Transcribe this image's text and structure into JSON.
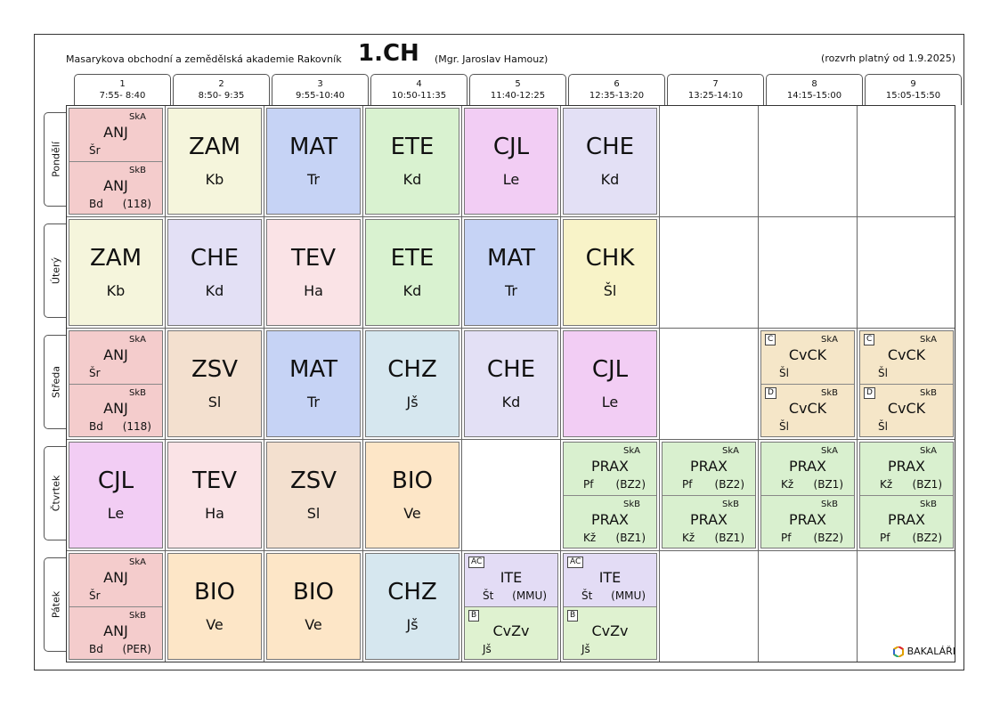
{
  "header": {
    "school": "Masarykova obchodní a zemědělská akademie Rakovník",
    "class_name": "1.CH",
    "teacher": "(Mgr. Jaroslav Hamouz)",
    "validity": "(rozvrh platný od 1.9.2025)"
  },
  "periods": [
    {
      "num": "1",
      "time": "7:55- 8:40"
    },
    {
      "num": "2",
      "time": "8:50- 9:35"
    },
    {
      "num": "3",
      "time": "9:55-10:40"
    },
    {
      "num": "4",
      "time": "10:50-11:35"
    },
    {
      "num": "5",
      "time": "11:40-12:25"
    },
    {
      "num": "6",
      "time": "12:35-13:20"
    },
    {
      "num": "7",
      "time": "13:25-14:10"
    },
    {
      "num": "8",
      "time": "14:15-15:00"
    },
    {
      "num": "9",
      "time": "15:05-15:50"
    }
  ],
  "days": [
    "Pondělí",
    "Úterý",
    "Středa",
    "Čtvrtek",
    "Pátek"
  ],
  "colors": {
    "ANJ": "#f4cccc",
    "ZAM": "#f5f5dc",
    "MAT": "#c6d3f5",
    "ETE": "#d9f2d0",
    "CJL": "#f2cdf4",
    "CHE": "#e3e0f5",
    "TEV": "#fae3e6",
    "CHK": "#f8f3c8",
    "ZSV": "#f3e0cf",
    "CHZ": "#d6e7ef",
    "BIO": "#fde6c7",
    "CvCK": "#f5e6c8",
    "PRAX": "#d9f0cf",
    "ITE": "#e3dcf5",
    "CvZv": "#dff2d0"
  },
  "lessons": [
    {
      "day": 0,
      "period": 0,
      "split": true,
      "top": {
        "group": "SkA",
        "subject": "ANJ",
        "teacher": "Šr",
        "room": ""
      },
      "bottom": {
        "group": "SkB",
        "subject": "ANJ",
        "teacher": "Bd",
        "room": "(118)"
      }
    },
    {
      "day": 0,
      "period": 1,
      "subject": "ZAM",
      "teacher": "Kb"
    },
    {
      "day": 0,
      "period": 2,
      "subject": "MAT",
      "teacher": "Tr"
    },
    {
      "day": 0,
      "period": 3,
      "subject": "ETE",
      "teacher": "Kd"
    },
    {
      "day": 0,
      "period": 4,
      "subject": "CJL",
      "teacher": "Le"
    },
    {
      "day": 0,
      "period": 5,
      "subject": "CHE",
      "teacher": "Kd"
    },
    {
      "day": 1,
      "period": 0,
      "subject": "ZAM",
      "teacher": "Kb"
    },
    {
      "day": 1,
      "period": 1,
      "subject": "CHE",
      "teacher": "Kd"
    },
    {
      "day": 1,
      "period": 2,
      "subject": "TEV",
      "teacher": "Ha"
    },
    {
      "day": 1,
      "period": 3,
      "subject": "ETE",
      "teacher": "Kd"
    },
    {
      "day": 1,
      "period": 4,
      "subject": "MAT",
      "teacher": "Tr"
    },
    {
      "day": 1,
      "period": 5,
      "subject": "CHK",
      "teacher": "Šl"
    },
    {
      "day": 2,
      "period": 0,
      "split": true,
      "top": {
        "group": "SkA",
        "subject": "ANJ",
        "teacher": "Šr",
        "room": ""
      },
      "bottom": {
        "group": "SkB",
        "subject": "ANJ",
        "teacher": "Bd",
        "room": "(118)"
      }
    },
    {
      "day": 2,
      "period": 1,
      "subject": "ZSV",
      "teacher": "Sl"
    },
    {
      "day": 2,
      "period": 2,
      "subject": "MAT",
      "teacher": "Tr"
    },
    {
      "day": 2,
      "period": 3,
      "subject": "CHZ",
      "teacher": "Jš"
    },
    {
      "day": 2,
      "period": 4,
      "subject": "CHE",
      "teacher": "Kd"
    },
    {
      "day": 2,
      "period": 5,
      "subject": "CJL",
      "teacher": "Le"
    },
    {
      "day": 2,
      "period": 7,
      "split": true,
      "top": {
        "tag": "C",
        "group": "SkA",
        "subject": "CvCK",
        "teacher": "Šl",
        "room": ""
      },
      "bottom": {
        "tag": "D",
        "group": "SkB",
        "subject": "CvCK",
        "teacher": "Šl",
        "room": ""
      }
    },
    {
      "day": 2,
      "period": 8,
      "split": true,
      "top": {
        "tag": "C",
        "group": "SkA",
        "subject": "CvCK",
        "teacher": "Šl",
        "room": ""
      },
      "bottom": {
        "tag": "D",
        "group": "SkB",
        "subject": "CvCK",
        "teacher": "Šl",
        "room": ""
      }
    },
    {
      "day": 3,
      "period": 0,
      "subject": "CJL",
      "teacher": "Le"
    },
    {
      "day": 3,
      "period": 1,
      "subject": "TEV",
      "teacher": "Ha"
    },
    {
      "day": 3,
      "period": 2,
      "subject": "ZSV",
      "teacher": "Sl"
    },
    {
      "day": 3,
      "period": 3,
      "subject": "BIO",
      "teacher": "Ve"
    },
    {
      "day": 3,
      "period": 5,
      "split": true,
      "top": {
        "group": "SkA",
        "subject": "PRAX",
        "teacher": "Pf",
        "room": "(BZ2)"
      },
      "bottom": {
        "group": "SkB",
        "subject": "PRAX",
        "teacher": "Kž",
        "room": "(BZ1)"
      }
    },
    {
      "day": 3,
      "period": 6,
      "split": true,
      "top": {
        "group": "SkA",
        "subject": "PRAX",
        "teacher": "Pf",
        "room": "(BZ2)"
      },
      "bottom": {
        "group": "SkB",
        "subject": "PRAX",
        "teacher": "Kž",
        "room": "(BZ1)"
      }
    },
    {
      "day": 3,
      "period": 7,
      "split": true,
      "top": {
        "group": "SkA",
        "subject": "PRAX",
        "teacher": "Kž",
        "room": "(BZ1)"
      },
      "bottom": {
        "group": "SkB",
        "subject": "PRAX",
        "teacher": "Pf",
        "room": "(BZ2)"
      }
    },
    {
      "day": 3,
      "period": 8,
      "split": true,
      "top": {
        "group": "SkA",
        "subject": "PRAX",
        "teacher": "Kž",
        "room": "(BZ1)"
      },
      "bottom": {
        "group": "SkB",
        "subject": "PRAX",
        "teacher": "Pf",
        "room": "(BZ2)"
      }
    },
    {
      "day": 4,
      "period": 0,
      "split": true,
      "top": {
        "group": "SkA",
        "subject": "ANJ",
        "teacher": "Šr",
        "room": ""
      },
      "bottom": {
        "group": "SkB",
        "subject": "ANJ",
        "teacher": "Bd",
        "room": "(PER)"
      }
    },
    {
      "day": 4,
      "period": 1,
      "subject": "BIO",
      "teacher": "Ve"
    },
    {
      "day": 4,
      "period": 2,
      "subject": "BIO",
      "teacher": "Ve"
    },
    {
      "day": 4,
      "period": 3,
      "subject": "CHZ",
      "teacher": "Jš"
    },
    {
      "day": 4,
      "period": 4,
      "split": true,
      "top": {
        "tag": "AC",
        "group": "",
        "subject": "ITE",
        "teacher": "Št",
        "room": "(MMU)"
      },
      "bottom": {
        "tag": "B",
        "group": "",
        "subject": "CvZv",
        "teacher": "Jš",
        "room": ""
      }
    },
    {
      "day": 4,
      "period": 5,
      "split": true,
      "top": {
        "tag": "AC",
        "group": "",
        "subject": "ITE",
        "teacher": "Št",
        "room": "(MMU)"
      },
      "bottom": {
        "tag": "B",
        "group": "",
        "subject": "CvZv",
        "teacher": "Jš",
        "room": ""
      }
    }
  ],
  "logo": {
    "text": "BAKALÁŘI",
    "icon": "bakalari-logo-icon"
  }
}
